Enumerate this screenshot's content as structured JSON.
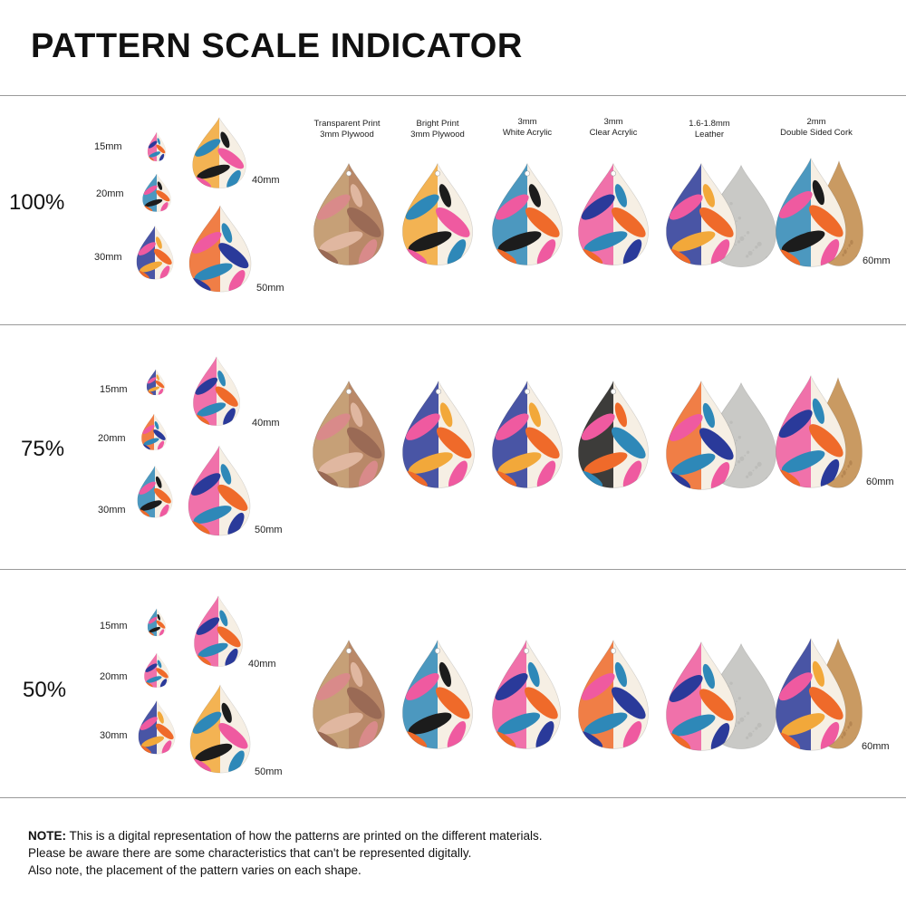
{
  "title": "PATTERN SCALE INDICATOR",
  "columns": [
    {
      "line1": "Transparent Print",
      "line2": "3mm Plywood"
    },
    {
      "line1": "Bright Print",
      "line2": "3mm Plywood"
    },
    {
      "line1": "3mm",
      "line2": "White Acrylic"
    },
    {
      "line1": "3mm",
      "line2": "Clear Acrylic"
    },
    {
      "line1": "1.6-1.8mm",
      "line2": "Leather"
    },
    {
      "line1": "2mm",
      "line2": "Double Sided Cork"
    }
  ],
  "sizes": {
    "s15": "15mm",
    "s20": "20mm",
    "s30": "30mm",
    "s40": "40mm",
    "s50": "50mm",
    "s60": "60mm"
  },
  "sections": [
    {
      "scale": "100%"
    },
    {
      "scale": "75%"
    },
    {
      "scale": "50%"
    }
  ],
  "note": {
    "bold": "NOTE:",
    "line1": " This is a digital representation of how the patterns are printed on the different materials.",
    "line2": "Please be aware there are some characteristics that can't be represented digitally.",
    "line3": "Also note, the placement of the pattern varies on each shape."
  },
  "colors": {
    "pink": "#ef5aa0",
    "blue": "#2e88b8",
    "navy": "#2a3a9a",
    "orange": "#ef6a2a",
    "yellow": "#f2a83a",
    "cream": "#f6efe4",
    "black": "#1c1c1c",
    "wood": "#c8a47a",
    "cork": "#c99a62",
    "suede": "#c9c9c6"
  }
}
